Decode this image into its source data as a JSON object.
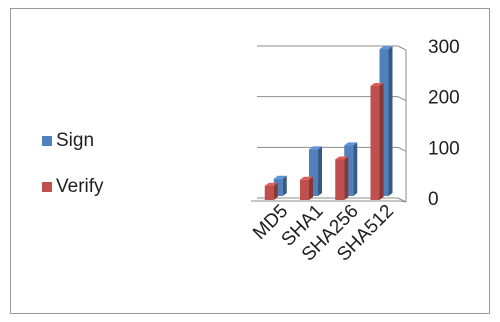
{
  "chart_data": {
    "type": "bar",
    "categories": [
      "MD5",
      "SHA1",
      "SHA256",
      "SHA512"
    ],
    "series": [
      {
        "name": "Sign",
        "values": [
          34,
          92,
          100,
          290
        ],
        "color": "#4f81bd"
      },
      {
        "name": "Verify",
        "values": [
          28,
          40,
          80,
          225
        ],
        "color": "#c0504d"
      }
    ],
    "yticks": [
      "0",
      "100",
      "200",
      "300"
    ],
    "ylim": [
      0,
      300
    ],
    "grid": true,
    "legend_position": "left",
    "style": "3d-clustered-column"
  }
}
